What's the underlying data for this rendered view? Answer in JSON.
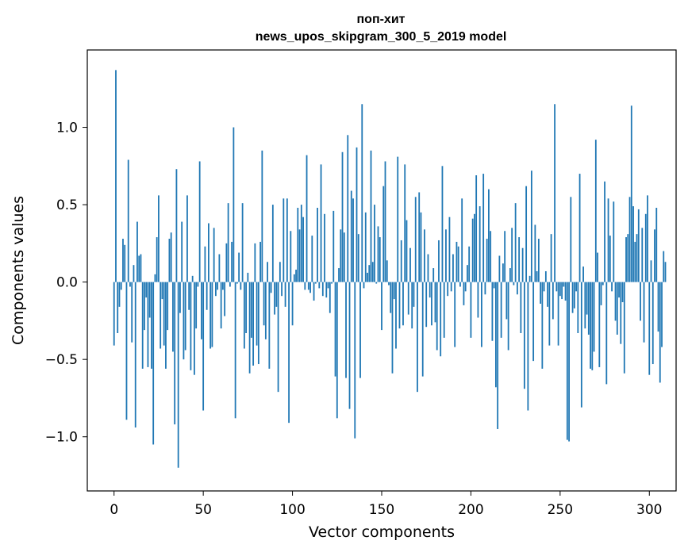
{
  "chart_data": {
    "type": "bar",
    "title_line1": "поп-хит",
    "title_line2": "news_upos_skipgram_300_5_2019 model",
    "xlabel": "Vector components",
    "ylabel": "Components values",
    "xlim": [
      -15,
      315
    ],
    "ylim": [
      -1.35,
      1.5
    ],
    "xticks": [
      0,
      50,
      100,
      150,
      200,
      250,
      300
    ],
    "xtick_labels": [
      "0",
      "50",
      "100",
      "150",
      "200",
      "250",
      "300"
    ],
    "yticks": [
      -1.0,
      -0.5,
      0.0,
      0.5,
      1.0
    ],
    "ytick_labels": [
      "−1.0",
      "−0.5",
      "0.0",
      "0.5",
      "1.0"
    ],
    "color": "#1f77b4",
    "values": [
      -0.41,
      1.37,
      -0.33,
      -0.16,
      -0.05,
      0.28,
      0.24,
      -0.89,
      0.79,
      -0.03,
      -0.39,
      0.11,
      -0.94,
      0.39,
      0.17,
      0.18,
      -0.56,
      -0.31,
      -0.1,
      -0.55,
      -0.23,
      -0.56,
      -1.05,
      0.05,
      0.29,
      0.56,
      -0.43,
      -0.11,
      -0.41,
      -0.56,
      -0.31,
      0.28,
      0.32,
      -0.45,
      -0.92,
      0.73,
      -1.2,
      -0.2,
      0.39,
      -0.5,
      -0.44,
      0.56,
      -0.18,
      -0.57,
      0.04,
      -0.6,
      -0.3,
      -0.03,
      0.78,
      -0.37,
      -0.83,
      0.23,
      -0.18,
      0.38,
      -0.43,
      -0.42,
      0.35,
      -0.09,
      -0.05,
      0.18,
      -0.3,
      -0.05,
      -0.22,
      0.25,
      0.51,
      -0.03,
      0.26,
      1.0,
      -0.88,
      -0.01,
      0.19,
      -0.05,
      0.51,
      -0.43,
      -0.33,
      0.06,
      -0.59,
      -0.36,
      -0.54,
      0.25,
      -0.41,
      -0.53,
      0.26,
      0.85,
      -0.28,
      -0.37,
      0.13,
      -0.56,
      -0.07,
      0.5,
      -0.21,
      -0.16,
      -0.71,
      0.13,
      -0.09,
      0.54,
      -0.16,
      0.54,
      -0.91,
      0.33,
      -0.28,
      0.05,
      0.08,
      0.48,
      0.34,
      0.5,
      0.42,
      -0.05,
      0.82,
      -0.05,
      -0.07,
      0.3,
      -0.12,
      -0.01,
      0.48,
      -0.04,
      0.76,
      -0.09,
      0.44,
      -0.1,
      -0.04,
      -0.2,
      -0.01,
      0.46,
      -0.61,
      -0.88,
      0.09,
      0.34,
      0.84,
      0.32,
      -0.62,
      0.95,
      -0.82,
      0.59,
      0.54,
      -1.01,
      0.87,
      0.31,
      -0.62,
      1.15,
      -0.04,
      0.45,
      0.06,
      0.11,
      0.85,
      0.13,
      0.5,
      -0.01,
      0.36,
      0.29,
      -0.31,
      0.62,
      0.78,
      0.14,
      -0.02,
      -0.2,
      -0.59,
      -0.11,
      -0.43,
      0.81,
      -0.3,
      0.27,
      -0.28,
      0.76,
      0.4,
      -0.21,
      0.22,
      -0.3,
      -0.16,
      0.55,
      -0.71,
      0.58,
      0.45,
      -0.61,
      0.34,
      -0.29,
      0.18,
      -0.1,
      -0.28,
      0.09,
      -0.26,
      -0.44,
      0.27,
      -0.48,
      0.75,
      -0.36,
      0.34,
      -0.09,
      0.42,
      -0.06,
      0.18,
      -0.42,
      0.26,
      0.23,
      -0.03,
      0.54,
      -0.15,
      -0.06,
      0.11,
      0.23,
      -0.36,
      0.41,
      0.44,
      0.69,
      -0.23,
      0.49,
      -0.42,
      0.7,
      -0.08,
      0.28,
      0.6,
      0.33,
      -0.38,
      -0.04,
      -0.68,
      -0.95,
      0.17,
      -0.36,
      0.12,
      0.33,
      -0.24,
      -0.44,
      0.09,
      0.35,
      -0.02,
      0.51,
      -0.08,
      0.29,
      -0.33,
      0.22,
      -0.69,
      0.62,
      -0.83,
      0.04,
      0.72,
      -0.51,
      0.37,
      0.07,
      0.28,
      -0.14,
      -0.56,
      -0.06,
      0.07,
      -0.16,
      -0.41,
      0.31,
      -0.24,
      1.15,
      -0.06,
      -0.41,
      -0.09,
      -0.11,
      -0.03,
      -0.12,
      -1.02,
      -1.03,
      0.55,
      -0.2,
      -0.17,
      -0.06,
      -0.33,
      0.7,
      -0.81,
      0.1,
      -0.3,
      -0.21,
      -0.34,
      -0.56,
      -0.57,
      -0.45,
      0.92,
      0.19,
      -0.55,
      -0.15,
      -0.02,
      0.65,
      -0.66,
      0.54,
      0.3,
      -0.06,
      0.52,
      -0.25,
      -0.34,
      -0.1,
      -0.4,
      -0.13,
      -0.59,
      0.29,
      0.31,
      0.55,
      1.14,
      0.49,
      0.26,
      0.31,
      0.47,
      -0.25,
      0.35,
      -0.39,
      0.44,
      0.56,
      -0.6,
      0.14,
      -0.53,
      0.34,
      0.48,
      -0.32,
      -0.65,
      -0.42,
      0.2,
      0.13
    ]
  }
}
